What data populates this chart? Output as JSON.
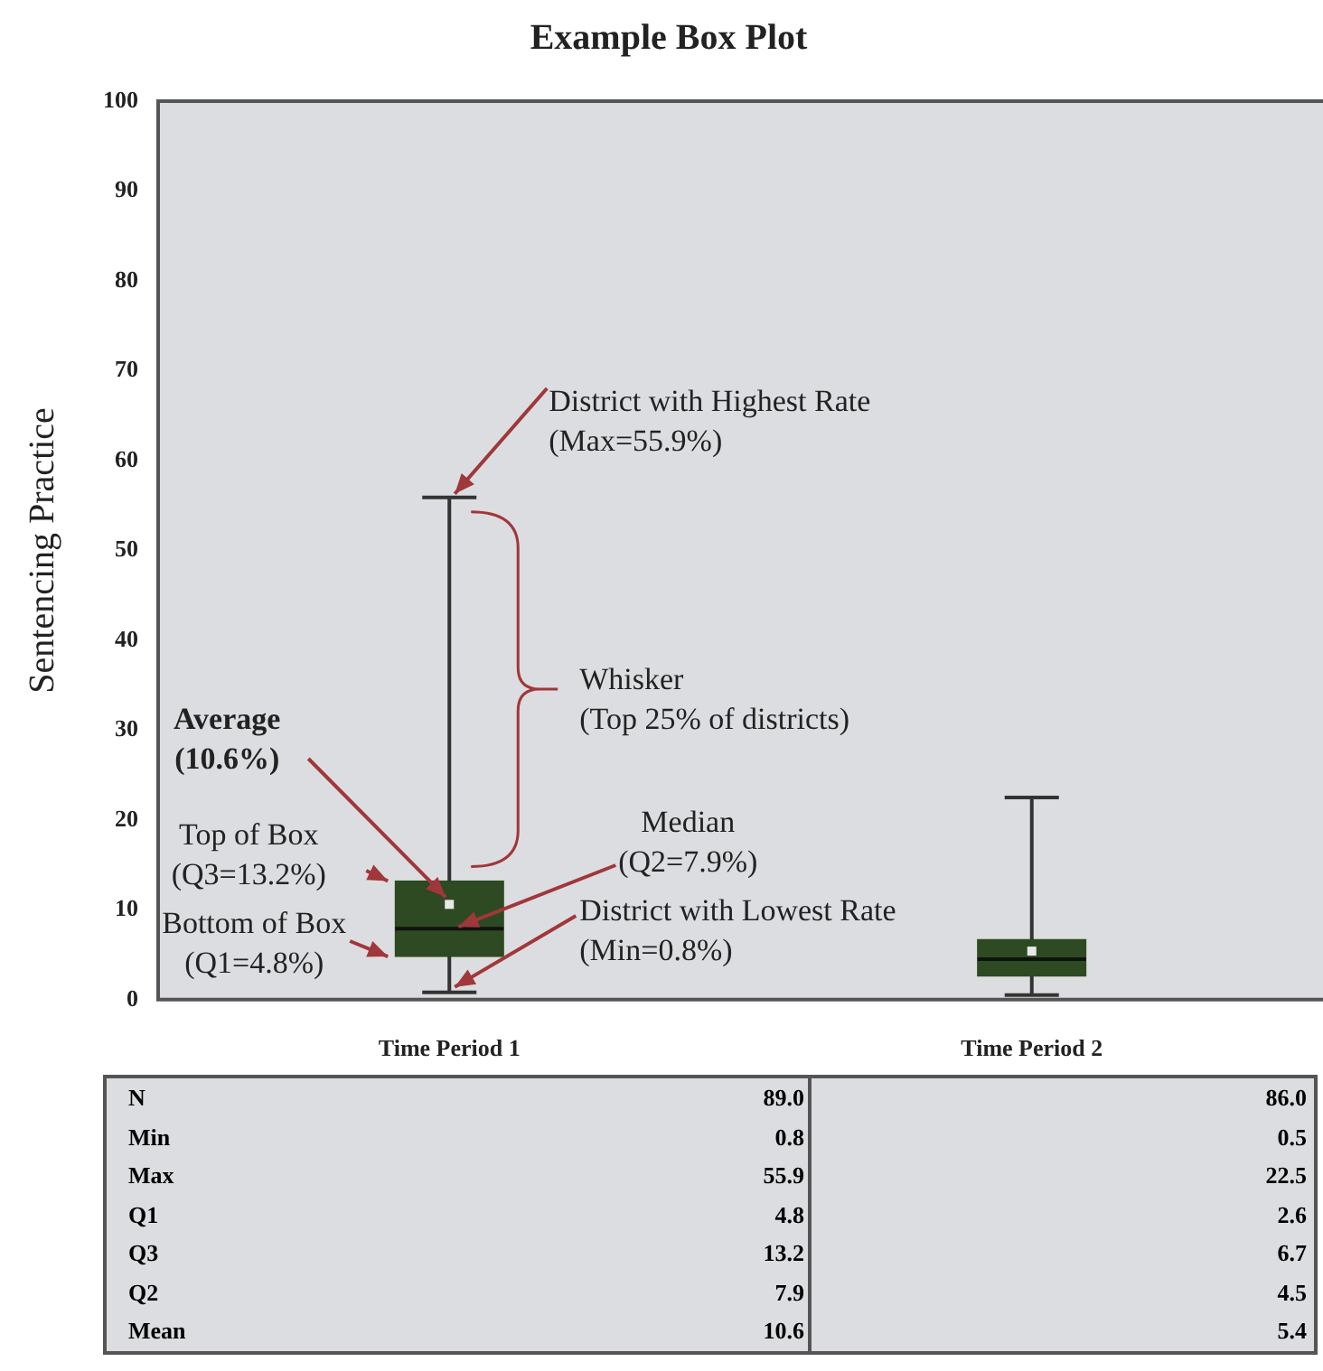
{
  "chart_data": {
    "type": "box",
    "title": "Example Box Plot",
    "ylabel": "Sentencing Practice",
    "categories": [
      "Time Period 1",
      "Time Period 2"
    ],
    "boxes": [
      {
        "low": 0.8,
        "q1": 4.8,
        "median": 7.9,
        "q3": 13.2,
        "high": 55.9,
        "mean": 10.6
      },
      {
        "low": 0.5,
        "q1": 2.6,
        "median": 4.5,
        "q3": 6.7,
        "high": 22.5,
        "mean": 5.4
      }
    ],
    "color": "#2d4a22",
    "ylim": [
      0,
      100
    ],
    "yticks": [
      0,
      10,
      20,
      30,
      40,
      50,
      60,
      70,
      80,
      90,
      100
    ],
    "grid": false,
    "legend": false,
    "data_labels": true,
    "annotations": [
      {
        "text": "District with Highest Rate\n(Max=55.9%)",
        "x": "Time Period 1",
        "y": 55.9
      },
      "Whisker\n(Top 25% of districts)",
      "Average\n(10.6%)",
      "Top of Box\n(Q3=13.2%)",
      {
        "text": "Median\n(Q2=7.9%)",
        "x": "Time Period 1",
        "y": 7.9
      },
      "Bottom of Box\n(Q1=4.8%)",
      {
        "text": "District with Lowest Rate\n(Min=0.8%)",
        "x": "Time Period 1",
        "y": 0.8
      },
      "N",
      "89.0",
      "86.0",
      "Min",
      "0.8",
      "0.5",
      "Max",
      "55.9",
      "22.5",
      "Q1",
      "4.8",
      "2.6",
      "Q3",
      "13.2",
      "6.7",
      "Q2",
      "7.9",
      "4.5",
      "Mean",
      "10.6",
      "5.4"
    ]
  }
}
